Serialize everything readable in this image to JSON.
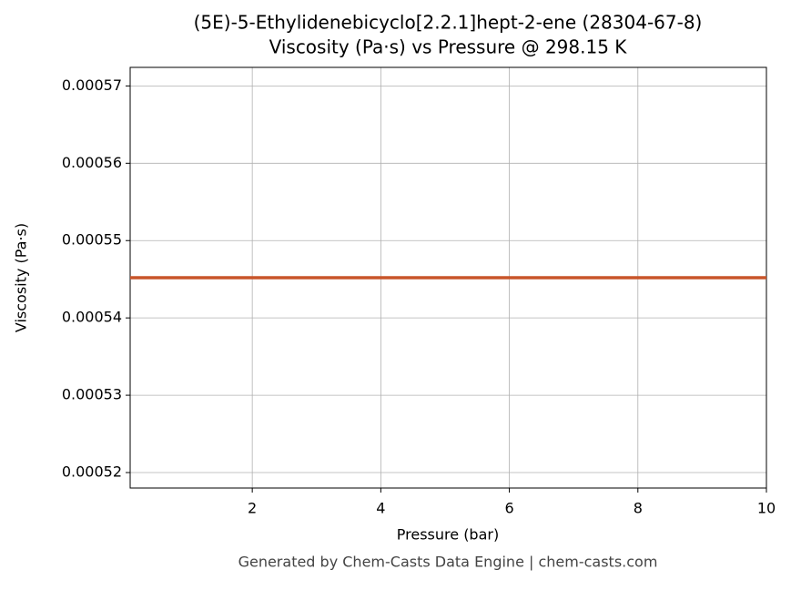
{
  "chart_data": {
    "type": "line",
    "title": "(5E)-5-Ethylidenebicyclo[2.2.1]hept-2-ene (28304-67-8)",
    "subtitle": "Viscosity (Pa·s) vs Pressure @ 298.15 K",
    "x_label": "Pressure (bar)",
    "y_label": "Viscosity (Pa·s)",
    "x": [
      0.1,
      10
    ],
    "series": [
      {
        "name": "Viscosity",
        "color": "#c8552a",
        "values": [
          0.0005452,
          0.0005452
        ]
      }
    ],
    "xlim": [
      0.1,
      10
    ],
    "xticks": [
      2,
      4,
      6,
      8,
      10
    ],
    "ylim": [
      0.000518,
      0.0005724
    ],
    "yticks": [
      0.00052,
      0.00053,
      0.00054,
      0.00055,
      0.00056,
      0.00057
    ],
    "grid": true,
    "legend": false,
    "footer": "Generated by Chem-Casts Data Engine | chem-casts.com"
  }
}
